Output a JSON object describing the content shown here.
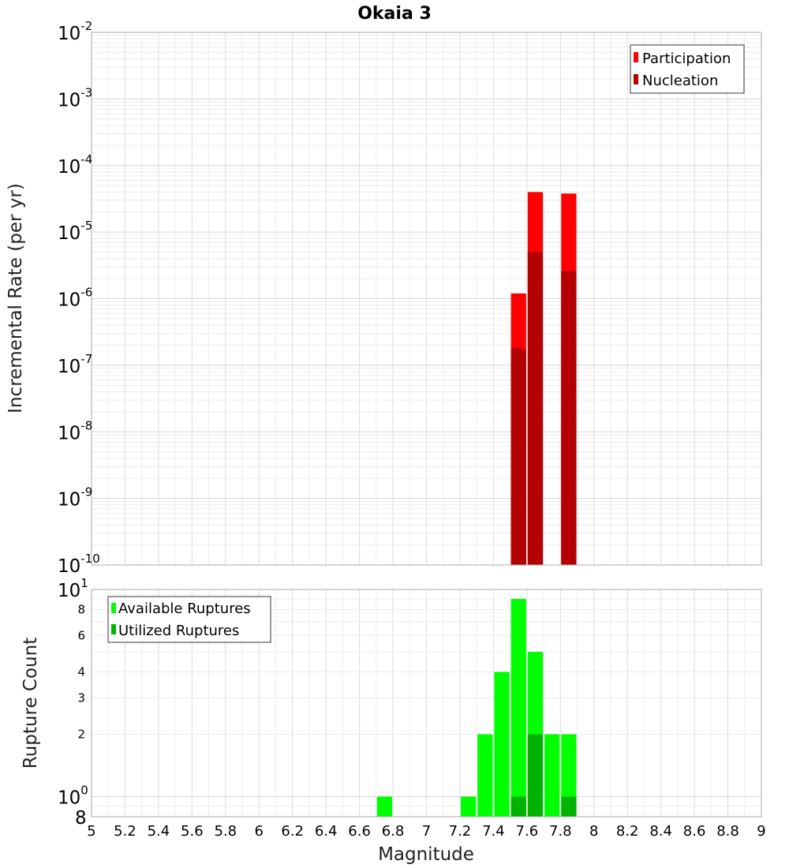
{
  "chart_data": [
    {
      "type": "bar",
      "title": "Okaia 3",
      "ylabel": "Incremental Rate (per yr)",
      "y_scale": "log",
      "ylim": [
        1e-10,
        0.01
      ],
      "xlim": [
        5,
        9
      ],
      "grid": true,
      "legend_position": "top-right",
      "y_tick_labels": [
        {
          "base": "10",
          "exp": "-2"
        },
        {
          "base": "10",
          "exp": "-3"
        },
        {
          "base": "10",
          "exp": "-4"
        },
        {
          "base": "10",
          "exp": "-5"
        },
        {
          "base": "10",
          "exp": "-6"
        },
        {
          "base": "10",
          "exp": "-7"
        },
        {
          "base": "10",
          "exp": "-8"
        },
        {
          "base": "10",
          "exp": "-9"
        },
        {
          "base": "10",
          "exp": "-10"
        }
      ],
      "bin_width": 0.1,
      "series": [
        {
          "name": "Participation",
          "color": "#ff0000",
          "x": [
            7.55,
            7.65,
            7.85
          ],
          "values": [
            1.2e-06,
            4e-05,
            3.8e-05
          ]
        },
        {
          "name": "Nucleation",
          "color": "#b30000",
          "x": [
            7.55,
            7.65,
            7.85
          ],
          "values": [
            1.8e-07,
            5e-06,
            2.6e-06
          ]
        }
      ]
    },
    {
      "type": "bar",
      "xlabel": "Magnitude",
      "ylabel": "Rupture Count",
      "y_scale": "log",
      "ylim": [
        0.8,
        10
      ],
      "xlim": [
        5,
        9
      ],
      "grid": true,
      "legend_position": "top-left",
      "y_major_ticks": [
        {
          "value": 10,
          "base": "10",
          "exp": "1"
        },
        {
          "value": 1,
          "base": "10",
          "exp": "0"
        },
        {
          "value": 0.8,
          "base": "8",
          "exp": ""
        }
      ],
      "y_minor_ticks": [
        {
          "value": 8,
          "label": "8"
        },
        {
          "value": 6,
          "label": "6"
        },
        {
          "value": 4,
          "label": "4"
        },
        {
          "value": 3,
          "label": "3"
        },
        {
          "value": 2,
          "label": "2"
        }
      ],
      "x_tick_labels": [
        "5",
        "5.2",
        "5.4",
        "5.6",
        "5.8",
        "6",
        "6.2",
        "6.4",
        "6.6",
        "6.8",
        "7",
        "7.2",
        "7.4",
        "7.6",
        "7.8",
        "8",
        "8.2",
        "8.4",
        "8.6",
        "8.8",
        "9"
      ],
      "bin_width": 0.1,
      "series": [
        {
          "name": "Available Ruptures",
          "color": "#00ff00",
          "x": [
            6.75,
            7.25,
            7.35,
            7.45,
            7.55,
            7.65,
            7.75,
            7.85
          ],
          "values": [
            1,
            1,
            2,
            4,
            9,
            5,
            2,
            2
          ]
        },
        {
          "name": "Utilized Ruptures",
          "color": "#00b300",
          "x": [
            7.55,
            7.65,
            7.85
          ],
          "values": [
            1,
            2,
            1
          ]
        }
      ]
    }
  ]
}
